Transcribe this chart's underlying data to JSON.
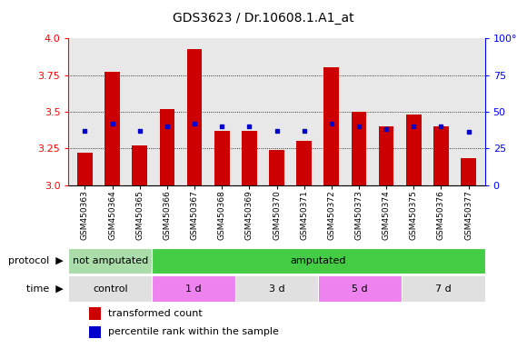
{
  "title": "GDS3623 / Dr.10608.1.A1_at",
  "samples": [
    "GSM450363",
    "GSM450364",
    "GSM450365",
    "GSM450366",
    "GSM450367",
    "GSM450368",
    "GSM450369",
    "GSM450370",
    "GSM450371",
    "GSM450372",
    "GSM450373",
    "GSM450374",
    "GSM450375",
    "GSM450376",
    "GSM450377"
  ],
  "red_values": [
    3.22,
    3.77,
    3.27,
    3.52,
    3.93,
    3.37,
    3.37,
    3.24,
    3.3,
    3.8,
    3.5,
    3.4,
    3.48,
    3.4,
    3.18
  ],
  "blue_values": [
    3.37,
    3.42,
    3.37,
    3.4,
    3.42,
    3.4,
    3.4,
    3.37,
    3.37,
    3.42,
    3.4,
    3.38,
    3.4,
    3.4,
    3.36
  ],
  "y_min": 3.0,
  "y_max": 4.0,
  "y_ticks_left": [
    3.0,
    3.25,
    3.5,
    3.75,
    4.0
  ],
  "y_ticks_right": [
    0,
    25,
    50,
    75,
    100
  ],
  "bar_color": "#cc0000",
  "dot_color": "#0000cc",
  "plot_bg": "#e8e8e8",
  "protocol_groups": [
    {
      "label": "not amputated",
      "start": 0,
      "end": 3,
      "color": "#aaddaa"
    },
    {
      "label": "amputated",
      "start": 3,
      "end": 15,
      "color": "#44cc44"
    }
  ],
  "time_groups": [
    {
      "label": "control",
      "start": 0,
      "end": 3,
      "color": "#e0e0e0"
    },
    {
      "label": "1 d",
      "start": 3,
      "end": 6,
      "color": "#ee82ee"
    },
    {
      "label": "3 d",
      "start": 6,
      "end": 9,
      "color": "#e0e0e0"
    },
    {
      "label": "5 d",
      "start": 9,
      "end": 12,
      "color": "#ee82ee"
    },
    {
      "label": "7 d",
      "start": 12,
      "end": 15,
      "color": "#e0e0e0"
    }
  ],
  "legend_items": [
    {
      "color": "#cc0000",
      "label": "transformed count"
    },
    {
      "color": "#0000cc",
      "label": "percentile rank within the sample"
    }
  ]
}
